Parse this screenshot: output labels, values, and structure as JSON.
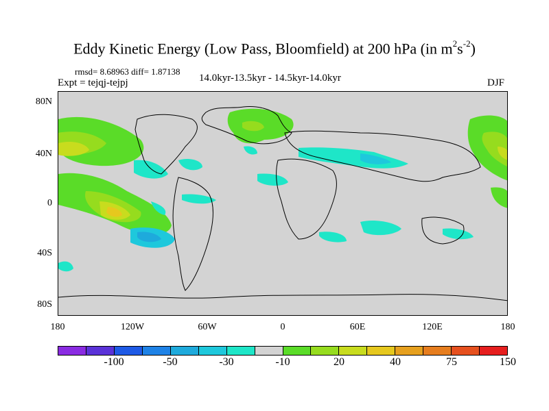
{
  "title": "Eddy Kinetic Energy (Low Pass, Bloomfield) at 200 hPa (in m",
  "title_sup1": "2",
  "title_s": "s",
  "title_sup2": "-2",
  "title_end": ")",
  "rmsd_text": "rmsd= 8.68963 diff= 1.87138",
  "expt_text": "Expt = tejqj-tejpj",
  "period_text": "14.0kyr-13.5kyr - 14.5kyr-14.0kyr",
  "season_text": "DJF",
  "lat_labels": [
    "80N",
    "40N",
    "0",
    "40S",
    "80S"
  ],
  "lon_labels": [
    "180",
    "120W",
    "60W",
    "0",
    "60E",
    "120E",
    "180"
  ],
  "colorbar": {
    "colors": [
      "#8a2be2",
      "#5a32d8",
      "#1e5ae6",
      "#1e82e6",
      "#1eaadc",
      "#1ec8dc",
      "#1ee6c8",
      "#d3d3d3",
      "#5adc28",
      "#96dc1e",
      "#c8dc1e",
      "#e6c81e",
      "#e6a01e",
      "#e67d1e",
      "#e6501e",
      "#e61e1e"
    ],
    "labels": [
      "-100",
      "-50",
      "-30",
      "-10",
      "20",
      "40",
      "75",
      "150"
    ]
  }
}
